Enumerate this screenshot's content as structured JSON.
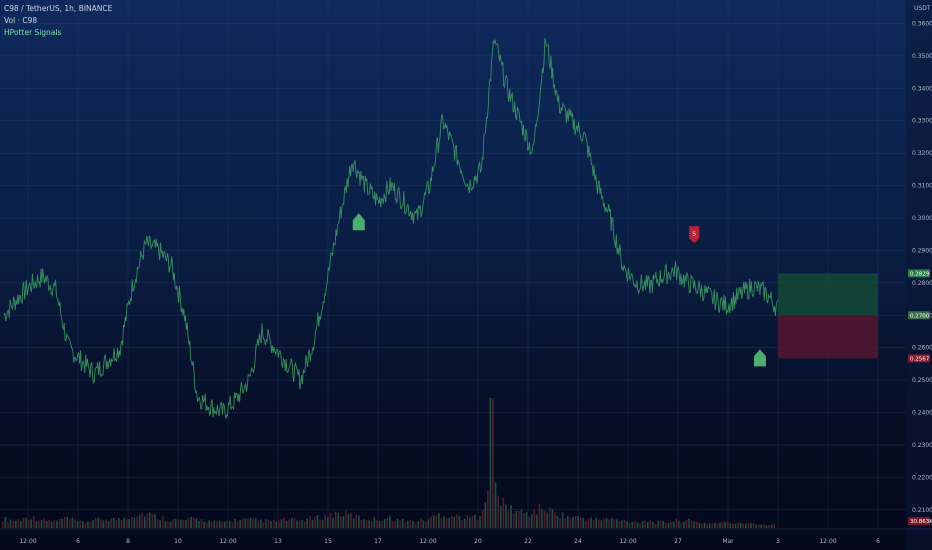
{
  "legend": {
    "symbol_line": "C98 / TetherUS, 1h, BINANCE",
    "volume_line": "Vol · C98",
    "indicator_line": "HPotter Signals"
  },
  "chart_data": {
    "type": "line",
    "title": "C98 / TetherUS, 1h, BINANCE",
    "xlabel": "",
    "ylabel": "",
    "y_axis_label": "USDT",
    "ylim": [
      0.205,
      0.366
    ],
    "grid": true,
    "x_tick_labels": [
      "12:00",
      "6",
      "8",
      "10",
      "12:00",
      "13",
      "15",
      "17",
      "12:00",
      "20",
      "22",
      "24",
      "12:00",
      "27",
      "Mar",
      "3",
      "12:00",
      "6"
    ],
    "y_tick_labels": [
      "0.3600",
      "0.3500",
      "0.3400",
      "0.3300",
      "0.3200",
      "0.3100",
      "0.3000",
      "0.2900",
      "0.2800",
      "0.2700",
      "0.2600",
      "0.2500",
      "0.2400",
      "0.2300",
      "0.2200",
      "0.2100"
    ],
    "price_tags": [
      {
        "label": "0.2829",
        "value": 0.2829,
        "color": "#2f7d4a"
      },
      {
        "label": "0.2700",
        "value": 0.27,
        "color": "#3d6f4c"
      },
      {
        "label": "0.2567",
        "value": 0.2567,
        "color": "#8a1c2c"
      },
      {
        "label": "30.863K",
        "value": 0.2065,
        "color": "#7a1a28"
      }
    ],
    "series": [
      {
        "values": [
          0.27,
          0.275,
          0.279,
          0.282,
          0.278,
          0.26,
          0.256,
          0.252,
          0.256,
          0.26,
          0.28,
          0.292,
          0.29,
          0.285,
          0.27,
          0.245,
          0.242,
          0.24,
          0.244,
          0.25,
          0.265,
          0.26,
          0.255,
          0.25,
          0.262,
          0.28,
          0.3,
          0.318,
          0.31,
          0.305,
          0.31,
          0.305,
          0.3,
          0.31,
          0.33,
          0.32,
          0.31,
          0.315,
          0.355,
          0.34,
          0.33,
          0.32,
          0.355,
          0.335,
          0.33,
          0.325,
          0.31,
          0.3,
          0.285,
          0.28,
          0.279,
          0.282,
          0.284,
          0.28,
          0.278,
          0.275,
          0.273,
          0.276,
          0.279,
          0.277,
          0.272
        ]
      }
    ],
    "signals": [
      {
        "type": "buy",
        "x_index": 27.5,
        "value": 0.299
      },
      {
        "type": "sell",
        "label": "S",
        "x_index": 53.5,
        "value": 0.295
      },
      {
        "type": "buy",
        "x_index": 58.6,
        "value": 0.257
      }
    ],
    "position_box": {
      "entry": 0.27,
      "target": 0.2829,
      "stop": 0.2567
    },
    "volume": {
      "spike_index": 38,
      "values": [
        1,
        0.8,
        1.2,
        0.9,
        0.7,
        1.1,
        0.6,
        0.8,
        1.0,
        0.9,
        1.3,
        1.6,
        1.2,
        0.9,
        0.8,
        1.0,
        0.7,
        0.6,
        0.8,
        0.9,
        0.8,
        0.7,
        0.9,
        0.8,
        1.0,
        1.2,
        1.6,
        1.4,
        1.0,
        0.9,
        1.1,
        0.8,
        0.7,
        0.9,
        1.5,
        1.3,
        1.1,
        1.2,
        5.0,
        2.4,
        1.8,
        1.5,
        2.2,
        1.6,
        1.2,
        1.1,
        0.9,
        1.0,
        0.8,
        0.7,
        0.8,
        0.6,
        0.7,
        0.9,
        0.6,
        0.5,
        0.6,
        0.5,
        0.6,
        0.4,
        0.4
      ]
    }
  },
  "colors": {
    "price_line": "#3c9a63",
    "grid": "#2a4470",
    "tp_zone": "#154f37",
    "sl_zone": "#5a1530",
    "buy_arrow": "#4caf70",
    "sell_arrow": "#b52434",
    "vol_up": "#1f5f4a",
    "vol_down": "#6a1c2c"
  }
}
